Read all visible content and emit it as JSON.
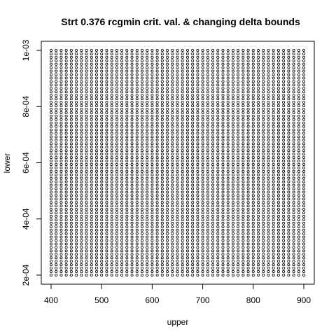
{
  "chart_data": {
    "type": "scatter",
    "title": "Strt 0.376 rcgmin crit. val. & changing delta bounds",
    "xlabel": "upper",
    "ylabel": "lower",
    "xlim": [
      400,
      900
    ],
    "ylim": [
      0.0002,
      0.001
    ],
    "x_ticks": [
      400,
      500,
      600,
      700,
      800,
      900
    ],
    "x_tick_labels": [
      "400",
      "500",
      "600",
      "700",
      "800",
      "900"
    ],
    "y_ticks": [
      0.0002,
      0.0004,
      0.0006,
      0.0008,
      0.001
    ],
    "y_tick_labels": [
      "2e-04",
      "4e-04",
      "6e-04",
      "8e-04",
      "1e-03"
    ],
    "grid": false,
    "marker": "open-circle",
    "series": [
      {
        "grid_points": {
          "x_from": 400,
          "x_to": 900,
          "x_count": 51,
          "y_from": 0.0002,
          "y_to": 0.001,
          "y_count": 66
        }
      }
    ]
  }
}
